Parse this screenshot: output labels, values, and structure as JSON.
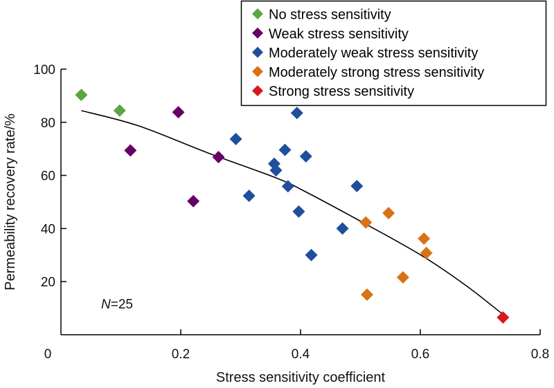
{
  "chart_data": {
    "type": "scatter",
    "title": "",
    "xlabel": "Stress sensitivity coefficient",
    "ylabel": "Permeability recovery rate/%",
    "xlim": [
      0,
      0.8
    ],
    "ylim": [
      0,
      100
    ],
    "xticks": [
      0,
      0.2,
      0.4,
      0.6,
      0.8
    ],
    "xtick_labels": [
      "0",
      "0.2",
      "0.4",
      "0.6",
      "0.8"
    ],
    "yticks": [
      20,
      40,
      60,
      80,
      100
    ],
    "ytick_labels": [
      "20",
      "40",
      "60",
      "80",
      "100"
    ],
    "grid": false,
    "legend_position": "top-right",
    "annotation": {
      "italic": "N",
      "rest": "=25"
    },
    "series": [
      {
        "name": "No stress sensitivity",
        "color": "#5aa646",
        "points": [
          [
            0.034,
            90.3
          ],
          [
            0.098,
            84.4
          ]
        ]
      },
      {
        "name": "Weak stress sensitivity",
        "color": "#660066",
        "points": [
          [
            0.116,
            69.4
          ],
          [
            0.196,
            83.8
          ],
          [
            0.221,
            50.3
          ],
          [
            0.263,
            66.9
          ]
        ]
      },
      {
        "name": "Moderately weak stress sensitivity",
        "color": "#1f4e9c",
        "points": [
          [
            0.292,
            73.7
          ],
          [
            0.314,
            52.3
          ],
          [
            0.356,
            64.4
          ],
          [
            0.359,
            61.9
          ],
          [
            0.374,
            69.6
          ],
          [
            0.379,
            55.9
          ],
          [
            0.394,
            83.5
          ],
          [
            0.397,
            46.4
          ],
          [
            0.409,
            67.2
          ],
          [
            0.418,
            30.0
          ],
          [
            0.47,
            40.0
          ],
          [
            0.494,
            56.0
          ]
        ]
      },
      {
        "name": "Moderately strong stress sensitivity",
        "color": "#d97217",
        "points": [
          [
            0.509,
            42.3
          ],
          [
            0.511,
            15.1
          ],
          [
            0.547,
            45.8
          ],
          [
            0.571,
            21.6
          ],
          [
            0.606,
            36.2
          ],
          [
            0.61,
            30.8
          ]
        ]
      },
      {
        "name": "Strong stress sensitivity",
        "color": "#d7191c",
        "points": [
          [
            0.738,
            6.5
          ]
        ]
      }
    ],
    "trend_line": {
      "type": "curve",
      "color": "#000000",
      "points": [
        [
          0.034,
          84.4
        ],
        [
          0.129,
          78.7
        ],
        [
          0.245,
          68.5
        ],
        [
          0.361,
          58.9
        ],
        [
          0.407,
          54.0
        ],
        [
          0.511,
          41.4
        ],
        [
          0.603,
          29.7
        ],
        [
          0.677,
          18.4
        ],
        [
          0.736,
          8.0
        ]
      ]
    }
  }
}
